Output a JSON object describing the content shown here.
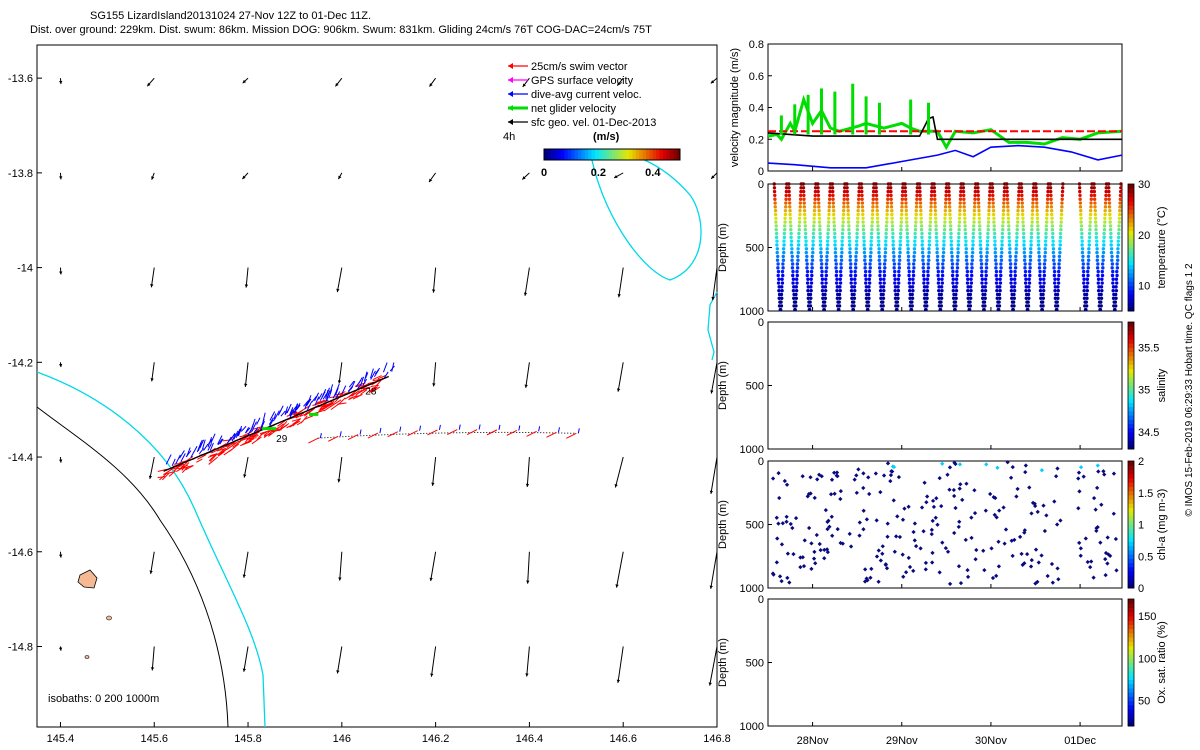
{
  "title": {
    "line1": "SG155 LizardIsland20131024 27-Nov 12Z to 01-Dec 11Z.",
    "line2": "Dist. over ground: 229km. Dist. swum: 86km. Mission DOG: 906km. Swum: 831km. Gliding 24cm/s 76T COG-DAC=24cm/s 75T"
  },
  "colors": {
    "swim": "#ff0000",
    "gps": "#ff00ff",
    "dac": "#0000ff",
    "net": "#00dd00",
    "geo": "#000000",
    "isobath_200": "#00d8e8",
    "isobath_1000": "#000000"
  },
  "chart_data": [
    {
      "type": "scatter",
      "panel": "map",
      "xlim": [
        145.35,
        146.8
      ],
      "ylim": [
        -14.97,
        -13.53
      ],
      "x_ticks": [
        "145.4",
        "145.6",
        "145.8",
        "146",
        "146.2",
        "146.4",
        "146.6",
        "146.8"
      ],
      "y_ticks": [
        "-13.6",
        "-13.8",
        "-14",
        "-14.2",
        "-14.4",
        "-14.6",
        "-14.8"
      ],
      "legend": {
        "placement": "top-right",
        "entries": [
          "25cm/s swim vector",
          "GPS surface velocity",
          "dive-avg current veloc.",
          "net glider velocity",
          "sfc geo. vel. 01-Dec-2013"
        ]
      },
      "time_step_label": "4h",
      "colorbar": {
        "label": "(m/s)",
        "ticks": [
          "0",
          "0.2",
          "0.4"
        ],
        "range": [
          0,
          0.5
        ]
      },
      "isobaths_label": "isobaths: 0   200   1000m",
      "track_day_labels": [
        {
          "text": "28",
          "lon": 146.05,
          "lat": -14.26
        },
        {
          "text": "29",
          "lon": 145.86,
          "lat": -14.36
        }
      ],
      "track": {
        "start": [
          146.1,
          -14.23
        ],
        "end": [
          145.62,
          -14.43
        ]
      },
      "forecast_track": {
        "start": [
          145.95,
          -14.36
        ],
        "end": [
          146.5,
          -14.35
        ]
      },
      "geo_velocity_grid": {
        "lons": [
          145.4,
          145.6,
          145.8,
          146.0,
          146.2,
          146.4,
          146.6,
          146.8
        ],
        "lats": [
          -13.6,
          -13.8,
          -14.0,
          -14.2,
          -14.4,
          -14.6,
          -14.8
        ]
      }
    },
    {
      "type": "line",
      "panel": "velocity",
      "ylabel": "velocity magnitude (m/s)",
      "ylim": [
        0,
        0.8
      ],
      "y_ticks": [
        "0",
        "0.2",
        "0.4",
        "0.6",
        "0.8"
      ],
      "x_range_days": [
        27.5,
        31.47
      ],
      "series": [
        {
          "color": "#00dd00",
          "x": [
            27.5,
            27.6,
            27.65,
            27.75,
            27.8,
            27.9,
            28.0,
            28.1,
            28.2,
            28.3,
            28.5,
            28.6,
            28.8,
            29.0,
            29.1,
            29.2,
            29.4,
            29.5,
            29.6,
            29.8,
            30.0,
            30.2,
            30.4,
            30.6,
            30.8,
            31.0,
            31.2,
            31.47
          ],
          "y": [
            0.22,
            0.23,
            0.2,
            0.3,
            0.25,
            0.45,
            0.3,
            0.38,
            0.27,
            0.25,
            0.28,
            0.3,
            0.27,
            0.3,
            0.27,
            0.25,
            0.25,
            0.15,
            0.25,
            0.24,
            0.26,
            0.18,
            0.18,
            0.17,
            0.21,
            0.2,
            0.24,
            0.25
          ]
        },
        {
          "color": "#ff0000",
          "x": [
            27.5,
            29.2,
            29.3,
            30.7,
            30.75,
            31.47
          ],
          "y": [
            0.25,
            0.25,
            0.25,
            0.25,
            0.25,
            0.25
          ]
        },
        {
          "color": "#000000",
          "x": [
            27.5,
            28.0,
            28.5,
            29.0,
            29.2,
            29.3,
            29.35,
            29.4,
            30.0,
            30.5,
            31.0,
            31.47
          ],
          "y": [
            0.24,
            0.22,
            0.22,
            0.22,
            0.22,
            0.33,
            0.34,
            0.2,
            0.2,
            0.2,
            0.2,
            0.2
          ]
        },
        {
          "color": "#0000ff",
          "x": [
            27.5,
            27.8,
            28.2,
            28.6,
            29.0,
            29.4,
            29.6,
            29.8,
            30.0,
            30.3,
            30.6,
            30.9,
            31.2,
            31.47
          ],
          "y": [
            0.05,
            0.04,
            0.02,
            0.02,
            0.06,
            0.1,
            0.13,
            0.09,
            0.15,
            0.16,
            0.15,
            0.12,
            0.07,
            0.1
          ]
        }
      ]
    },
    {
      "type": "scatter",
      "panel": "temperature",
      "ylabel": "Depth (m)",
      "ylim": [
        1000,
        0
      ],
      "y_ticks": [
        "0",
        "500",
        "1000"
      ],
      "colorbar": {
        "label": "temperature (°C)",
        "ticks": [
          "10",
          "20",
          "30"
        ],
        "range": [
          5,
          30
        ]
      },
      "profile_count": 24,
      "gap_days": [
        30.8,
        30.95
      ]
    },
    {
      "type": "scatter",
      "panel": "salinity",
      "ylabel": "Depth (m)",
      "ylim": [
        1000,
        0
      ],
      "y_ticks": [
        "0",
        "500",
        "1000"
      ],
      "colorbar": {
        "label": "salinity",
        "ticks": [
          "34.5",
          "35",
          "35.5"
        ],
        "range": [
          34.3,
          35.8
        ]
      }
    },
    {
      "type": "scatter",
      "panel": "chlorophyll",
      "ylabel": "Depth (m)",
      "ylim": [
        1000,
        0
      ],
      "y_ticks": [
        "0",
        "500",
        "1000"
      ],
      "colorbar": {
        "label": "chl-a (mg m-3)",
        "ticks": [
          "0",
          "0.5",
          "1",
          "1.5",
          "2"
        ],
        "range": [
          0,
          2
        ]
      }
    },
    {
      "type": "scatter",
      "panel": "oxygen",
      "ylabel": "Depth (m)",
      "ylim": [
        1000,
        0
      ],
      "y_ticks": [
        "0",
        "500",
        "1000"
      ],
      "colorbar": {
        "label": "Ox. sat. ratio (%)",
        "ticks": [
          "50",
          "100",
          "150"
        ],
        "range": [
          20,
          170
        ]
      },
      "x_ticks": [
        "28Nov",
        "29Nov",
        "30Nov",
        "01Dec"
      ],
      "x_tick_days": [
        28,
        29,
        30,
        31
      ]
    }
  ],
  "side_note": "© IMOS 15-Feb-2019 06:29:33 Hobart time. QC flags 1  2"
}
